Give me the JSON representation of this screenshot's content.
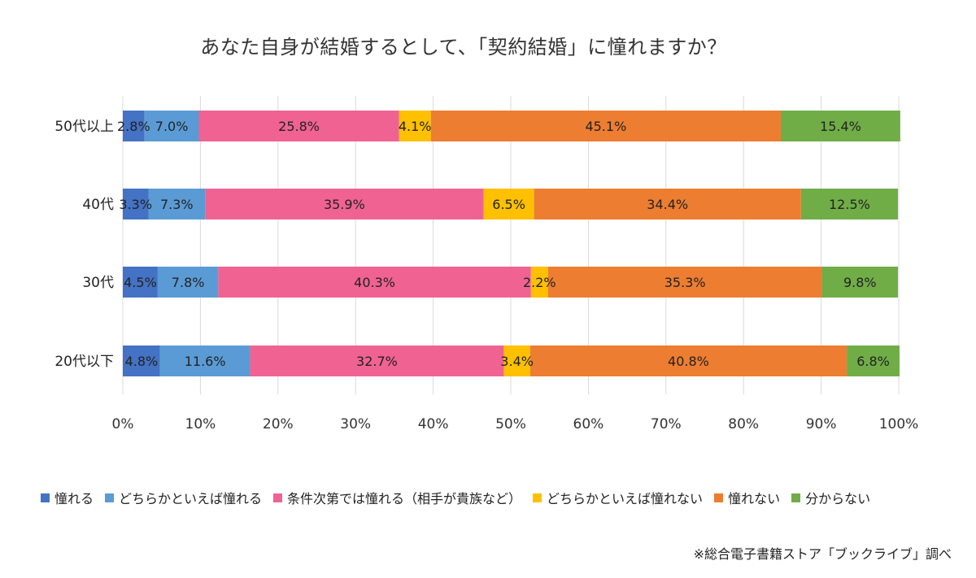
{
  "colors": {
    "akogareru": "#4472c4",
    "dochiraka_akogareru": "#5b9bd5",
    "jouken": "#f06292",
    "dochiraka_akogarenai": "#ffc000",
    "akogarenai": "#ed7d31",
    "wakaranai": "#70ad47",
    "grid": "#d9d9d9"
  },
  "chart_data": {
    "type": "bar",
    "orientation": "horizontal-stacked-100",
    "title": "あなた自身が結婚するとして、「契約結婚」に憧れますか？",
    "categories": [
      "50代以上",
      "40代",
      "30代",
      "20代以下"
    ],
    "series": [
      {
        "name": "憧れる",
        "color_key": "akogareru",
        "values": [
          2.8,
          3.3,
          4.5,
          4.8
        ],
        "labels": [
          "2.8%",
          "3.3%",
          "4.5%",
          "4.8%"
        ]
      },
      {
        "name": "どちらかといえば憧れる",
        "color_key": "dochiraka_akogareru",
        "values": [
          7.0,
          7.3,
          7.8,
          11.6
        ],
        "labels": [
          "7.0%",
          "7.3%",
          "7.8%",
          "11.6%"
        ]
      },
      {
        "name": "条件次第では憧れる（相手が貴族など）",
        "color_key": "jouken",
        "values": [
          25.8,
          35.9,
          40.3,
          32.7
        ],
        "labels": [
          "25.8%",
          "35.9%",
          "40.3%",
          "32.7%"
        ]
      },
      {
        "name": "どちらかといえば憧れない",
        "color_key": "dochiraka_akogarenai",
        "values": [
          4.1,
          6.5,
          2.2,
          3.4
        ],
        "labels": [
          "4.1%",
          "6.5%",
          "2.2%",
          "3.4%"
        ]
      },
      {
        "name": "憧れない",
        "color_key": "akogarenai",
        "values": [
          45.1,
          34.4,
          35.3,
          40.8
        ],
        "labels": [
          "45.1%",
          "34.4%",
          "35.3%",
          "40.8%"
        ]
      },
      {
        "name": "分からない",
        "color_key": "wakaranai",
        "values": [
          15.4,
          12.5,
          9.8,
          6.8
        ],
        "labels": [
          "15.4%",
          "12.5%",
          "9.8%",
          "6.8%"
        ]
      }
    ],
    "xlim": [
      0,
      100
    ],
    "xticks": [
      "0%",
      "10%",
      "20%",
      "30%",
      "40%",
      "50%",
      "60%",
      "70%",
      "80%",
      "90%",
      "100%"
    ],
    "grid": true,
    "legend_position": "bottom"
  },
  "source_note": "※総合電子書籍ストア「ブックライブ」調べ"
}
